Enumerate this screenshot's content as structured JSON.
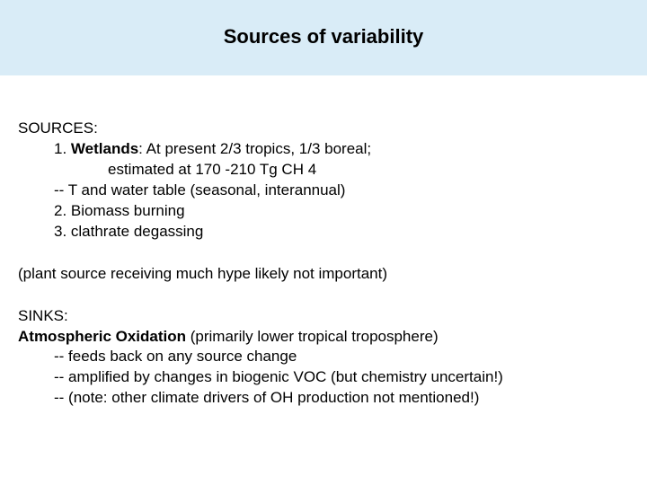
{
  "title": "Sources of variability",
  "sources": {
    "heading": "SOURCES:",
    "line1_prefix": "1. ",
    "line1_bold": "Wetlands",
    "line1_rest": ": At present 2/3 tropics, 1/3 boreal;",
    "line2": "estimated at 170 -210 Tg CH 4",
    "line3": "-- T and water table (seasonal, interannual)",
    "line4": "2. Biomass burning",
    "line5": "3. clathrate degassing"
  },
  "plant_note": "(plant source receiving much hype likely not important)",
  "sinks": {
    "heading": "SINKS:",
    "line1_bold": "Atmospheric Oxidation",
    "line1_rest": " (primarily lower tropical troposphere)",
    "line2": "-- feeds back on any source change",
    "line3": "-- amplified by changes in biogenic VOC (but chemistry uncertain!)",
    "line4": "-- (note: other climate drivers of OH production not mentioned!)"
  },
  "colors": {
    "title_band_bg": "#d9ecf7",
    "page_bg": "#ffffff",
    "text": "#000000"
  },
  "typography": {
    "title_fontsize": 22,
    "body_fontsize": 17,
    "font_family": "Verdana"
  }
}
